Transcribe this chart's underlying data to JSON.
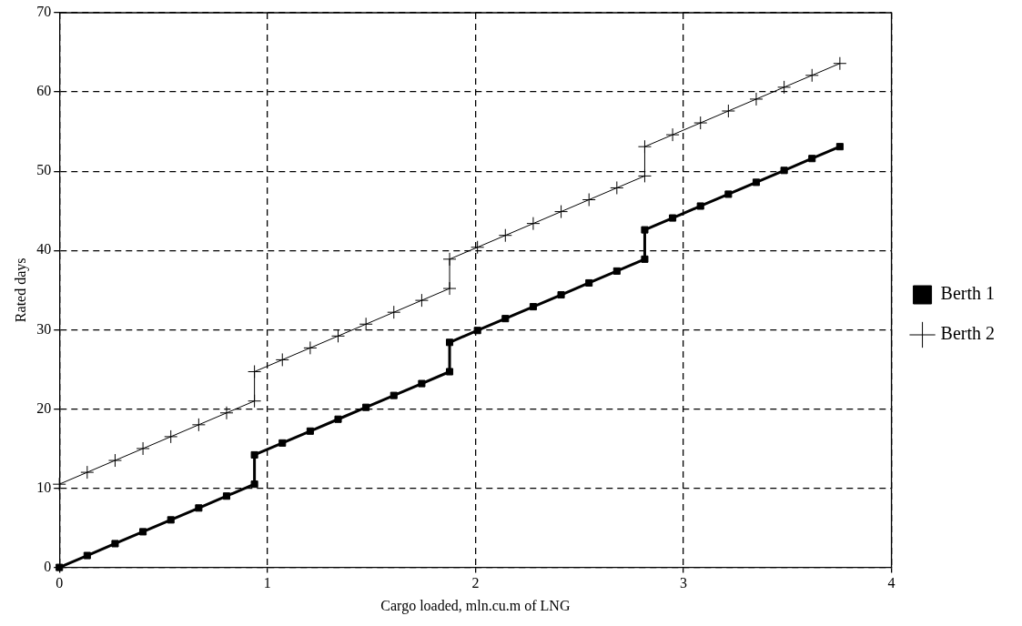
{
  "chart_data": {
    "type": "line",
    "xlabel": "Cargo loaded, mln.cu.m of LNG",
    "ylabel": "Rated days",
    "xlim": [
      0,
      4
    ],
    "xticks": [
      0,
      1,
      2,
      3,
      4
    ],
    "ylim": [
      0,
      70
    ],
    "yticks": [
      0,
      10,
      20,
      30,
      40,
      50,
      60,
      70
    ],
    "grid": true,
    "legend": "right",
    "line_style": "solid",
    "series": [
      {
        "name": "Berth 1",
        "color": "#000000",
        "marker": "square",
        "x": [
          0,
          0.134,
          0.268,
          0.402,
          0.536,
          0.67,
          0.804,
          0.938,
          0.938,
          1.072,
          1.206,
          1.34,
          1.474,
          1.608,
          1.742,
          1.876,
          1.876,
          2.01,
          2.144,
          2.278,
          2.412,
          2.546,
          2.68,
          2.814,
          2.814,
          2.948,
          3.082,
          3.216,
          3.35,
          3.484,
          3.618,
          3.752
        ],
        "values": [
          0,
          1.5,
          3,
          4.5,
          6,
          7.5,
          9,
          10.5,
          14.2,
          15.7,
          17.2,
          18.7,
          20.2,
          21.7,
          23.2,
          24.7,
          28.4,
          29.9,
          31.4,
          32.9,
          34.4,
          35.9,
          37.4,
          38.9,
          42.6,
          44.1,
          45.6,
          47.1,
          48.6,
          50.1,
          51.6,
          53.1
        ]
      },
      {
        "name": "Berth 2",
        "color": "#000000",
        "marker": "cross",
        "x": [
          0,
          0.134,
          0.268,
          0.402,
          0.536,
          0.67,
          0.804,
          0.938,
          0.938,
          1.072,
          1.206,
          1.34,
          1.474,
          1.608,
          1.742,
          1.876,
          1.876,
          2.01,
          2.144,
          2.278,
          2.412,
          2.546,
          2.68,
          2.814,
          2.814,
          2.948,
          3.082,
          3.216,
          3.35,
          3.484,
          3.618,
          3.752
        ],
        "values": [
          10.5,
          12,
          13.5,
          15,
          16.5,
          18,
          19.5,
          21,
          24.7,
          26.2,
          27.7,
          29.2,
          30.7,
          32.2,
          33.7,
          35.2,
          38.9,
          40.4,
          41.9,
          43.4,
          44.9,
          46.4,
          47.9,
          49.4,
          53.1,
          54.6,
          56.1,
          57.6,
          59.1,
          60.6,
          62.1,
          63.6
        ]
      }
    ]
  }
}
